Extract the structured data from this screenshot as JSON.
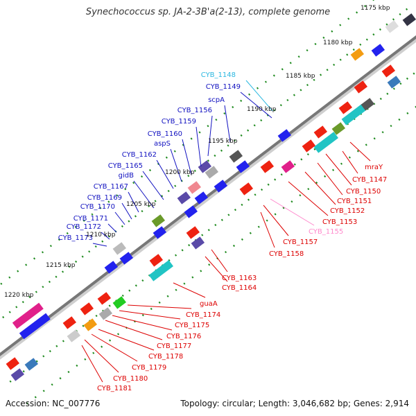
{
  "title": "Synechococcus sp. JA-2-3B'a(2-13), complete genome",
  "footer": {
    "accession": "Accession: NC_007776",
    "topology": "Topology: circular; Length: 3,046,682 bp; Genes: 2,914"
  },
  "colors": {
    "backbone": "#777777",
    "tick": "#1e8a1e",
    "forward_label": "#1010c0",
    "reverse_label": "#dd0000",
    "highlight_label": "#2ab7e0",
    "pink_label": "#ff88cc"
  },
  "kbp_markers": [
    "1175 kbp",
    "1180 kbp",
    "1185 kbp",
    "1190 kbp",
    "1195 kbp",
    "1200 kbp",
    "1205 kbp",
    "1210 kbp",
    "1215 kbp",
    "1220 kbp"
  ],
  "forward_labels": [
    {
      "text": "CYB_1148",
      "color": "highlight"
    },
    {
      "text": "CYB_1149",
      "color": "forward"
    },
    {
      "text": "scpA",
      "color": "forward"
    },
    {
      "text": "CYB_1156",
      "color": "forward"
    },
    {
      "text": "CYB_1159",
      "color": "forward"
    },
    {
      "text": "CYB_1160",
      "color": "forward"
    },
    {
      "text": "aspS",
      "color": "forward"
    },
    {
      "text": "CYB_1162",
      "color": "forward"
    },
    {
      "text": "CYB_1165",
      "color": "forward"
    },
    {
      "text": "gidB",
      "color": "forward"
    },
    {
      "text": "CYB_1167",
      "color": "forward"
    },
    {
      "text": "CYB_1169",
      "color": "forward"
    },
    {
      "text": "CYB_1170",
      "color": "forward"
    },
    {
      "text": "CYB_1171",
      "color": "forward"
    },
    {
      "text": "CYB_1172",
      "color": "forward"
    },
    {
      "text": "CYB_1173",
      "color": "forward"
    }
  ],
  "reverse_labels": [
    {
      "text": "mraY",
      "color": "reverse"
    },
    {
      "text": "CYB_1147",
      "color": "reverse"
    },
    {
      "text": "CYB_1150",
      "color": "reverse"
    },
    {
      "text": "CYB_1151",
      "color": "reverse"
    },
    {
      "text": "CYB_1152",
      "color": "reverse"
    },
    {
      "text": "CYB_1153",
      "color": "reverse"
    },
    {
      "text": "CYB_1155",
      "color": "pink"
    },
    {
      "text": "CYB_1157",
      "color": "reverse"
    },
    {
      "text": "CYB_1158",
      "color": "reverse"
    },
    {
      "text": "CYB_1163",
      "color": "reverse"
    },
    {
      "text": "CYB_1164",
      "color": "reverse"
    },
    {
      "text": "guaA",
      "color": "reverse"
    },
    {
      "text": "CYB_1174",
      "color": "reverse"
    },
    {
      "text": "CYB_1175",
      "color": "reverse"
    },
    {
      "text": "CYB_1176",
      "color": "reverse"
    },
    {
      "text": "CYB_1177",
      "color": "reverse"
    },
    {
      "text": "CYB_1178",
      "color": "reverse"
    },
    {
      "text": "CYB_1179",
      "color": "reverse"
    },
    {
      "text": "CYB_1180",
      "color": "reverse"
    },
    {
      "text": "CYB_1181",
      "color": "reverse"
    }
  ]
}
